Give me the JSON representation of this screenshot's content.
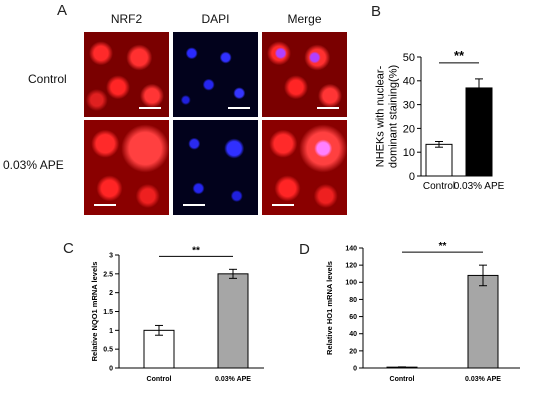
{
  "panel_a": {
    "label": "A",
    "columns": [
      "NRF2",
      "DAPI",
      "Merge"
    ],
    "rows": [
      "Control",
      "0.03% APE"
    ]
  },
  "chart_data": [
    {
      "panel": "B",
      "type": "bar",
      "categories": [
        "Control",
        "0.03% APE"
      ],
      "values": [
        13.3,
        37
      ],
      "errors": [
        1.2,
        3.8
      ],
      "bar_colors": [
        "#ffffff",
        "#000000"
      ],
      "ylabel": "NHEKs with nuclear-\ndominant staining(%)",
      "ylim": [
        0,
        50
      ],
      "yticks": [
        0,
        10,
        20,
        30,
        40,
        50
      ],
      "significance": "**"
    },
    {
      "panel": "C",
      "type": "bar",
      "categories": [
        "Control",
        "0.03% APE"
      ],
      "values": [
        1,
        2.5
      ],
      "errors": [
        0.13,
        0.12
      ],
      "bar_colors": [
        "#ffffff",
        "#a6a6a6"
      ],
      "ylabel": "Relative NQO1 mRNA levels",
      "ylim": [
        0,
        3
      ],
      "yticks": [
        0,
        0.5,
        1,
        1.5,
        2,
        2.5,
        3
      ],
      "ytick_labels": [
        "0",
        "0.5",
        "1",
        "1.5",
        "2",
        "2.5",
        "3"
      ],
      "significance": "**"
    },
    {
      "panel": "D",
      "type": "bar",
      "categories": [
        "Control",
        "0.03% APE"
      ],
      "values": [
        1,
        108
      ],
      "errors": [
        0.3,
        12
      ],
      "bar_colors": [
        "#ffffff",
        "#a6a6a6"
      ],
      "ylabel": "Relative HO1 mRNA levels",
      "ylim": [
        0,
        140
      ],
      "yticks": [
        0,
        20,
        40,
        60,
        80,
        100,
        120,
        140
      ],
      "significance": "**"
    }
  ]
}
